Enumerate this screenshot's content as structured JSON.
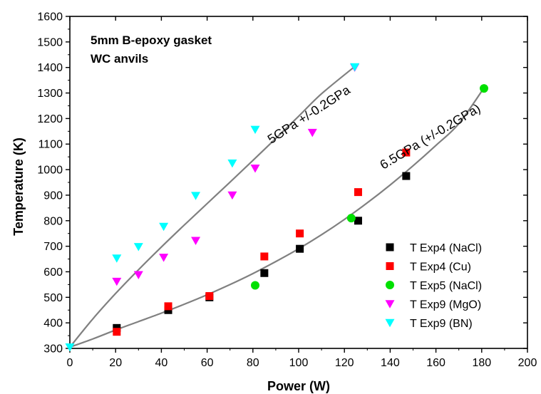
{
  "chart_data": {
    "type": "scatter",
    "xlabel": "Power (W)",
    "ylabel": "Temperature (K)",
    "xlim": [
      0,
      200
    ],
    "ylim": [
      300,
      1600
    ],
    "x_ticks": [
      0,
      20,
      40,
      60,
      80,
      100,
      120,
      140,
      160,
      180,
      200
    ],
    "y_ticks": [
      300,
      400,
      500,
      600,
      700,
      800,
      900,
      1000,
      1100,
      1200,
      1300,
      1400,
      1500,
      1600
    ],
    "grid": false,
    "legend_position": "bottom-right",
    "annotations": [
      "5mm B-epoxy gasket",
      "WC anvils"
    ],
    "series": [
      {
        "name": "T Exp4 (NaCl)",
        "marker": "square",
        "color": "#000000",
        "points": [
          [
            20.5,
            380
          ],
          [
            43,
            450
          ],
          [
            61,
            500
          ],
          [
            85,
            595
          ],
          [
            100.5,
            690
          ],
          [
            126,
            800
          ],
          [
            147,
            975
          ]
        ]
      },
      {
        "name": "T Exp4 (Cu)",
        "marker": "square",
        "color": "#ff0000",
        "points": [
          [
            20.5,
            365
          ],
          [
            43,
            465
          ],
          [
            61,
            505
          ],
          [
            85,
            660
          ],
          [
            100.5,
            750
          ],
          [
            126,
            912
          ],
          [
            147,
            1067
          ]
        ]
      },
      {
        "name": "T Exp5 (NaCl)",
        "marker": "circle",
        "color": "#00e000",
        "points": [
          [
            81,
            547
          ],
          [
            123,
            810
          ],
          [
            181,
            1318
          ]
        ]
      },
      {
        "name": "T Exp9 (MgO)",
        "marker": "triangle-down",
        "color": "#ff00ff",
        "points": [
          [
            20.5,
            562
          ],
          [
            30,
            588
          ],
          [
            41,
            656
          ],
          [
            55,
            722
          ],
          [
            71,
            900
          ],
          [
            81,
            1005
          ],
          [
            106,
            1145
          ],
          [
            124.5,
            1400
          ]
        ]
      },
      {
        "name": "T Exp9 (BN)",
        "marker": "triangle-down",
        "color": "#00ffff",
        "points": [
          [
            0,
            305
          ],
          [
            20.5,
            653
          ],
          [
            30,
            698
          ],
          [
            41,
            777
          ],
          [
            55,
            898
          ],
          [
            71,
            1025
          ],
          [
            81,
            1157
          ],
          [
            124.5,
            1402
          ]
        ]
      }
    ],
    "fit_curves": [
      {
        "label": "5GPa +/-0.2GPa",
        "color": "#808080",
        "points": [
          [
            0,
            305
          ],
          [
            10,
            415
          ],
          [
            20,
            515
          ],
          [
            30,
            608
          ],
          [
            40,
            697
          ],
          [
            50,
            783
          ],
          [
            60,
            867
          ],
          [
            70,
            951
          ],
          [
            80,
            1036
          ],
          [
            90,
            1122
          ],
          [
            100,
            1209
          ],
          [
            110,
            1297
          ],
          [
            124,
            1400
          ]
        ]
      },
      {
        "label": "6.5GPa (+/-0.2GPa)",
        "color": "#808080",
        "points": [
          [
            0,
            305
          ],
          [
            10,
            337
          ],
          [
            20,
            372
          ],
          [
            30,
            405
          ],
          [
            40,
            438
          ],
          [
            50,
            473
          ],
          [
            60,
            510
          ],
          [
            70,
            550
          ],
          [
            80,
            593
          ],
          [
            90,
            640
          ],
          [
            100,
            690
          ],
          [
            110,
            745
          ],
          [
            120,
            805
          ],
          [
            130,
            870
          ],
          [
            140,
            940
          ],
          [
            150,
            1015
          ],
          [
            160,
            1095
          ],
          [
            170,
            1180
          ],
          [
            181,
            1320
          ]
        ]
      }
    ]
  }
}
